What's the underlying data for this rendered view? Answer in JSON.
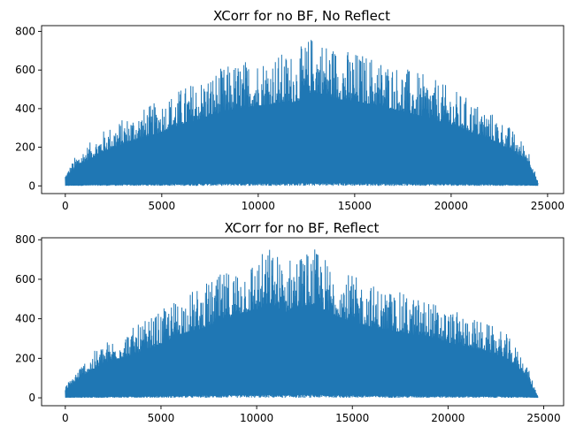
{
  "chart_data": [
    {
      "type": "line",
      "title": "XCorr for no BF, No Reflect",
      "xlabel": "",
      "ylabel": "",
      "xlim": [
        -1230,
        25830
      ],
      "ylim": [
        -40,
        830
      ],
      "xticks": [
        0,
        5000,
        10000,
        15000,
        20000,
        25000
      ],
      "xtick_labels": [
        "0",
        "5000",
        "10000",
        "15000",
        "20000",
        "25000"
      ],
      "yticks": [
        0,
        200,
        400,
        600,
        800
      ],
      "ytick_labels": [
        "0",
        "200",
        "400",
        "600",
        "800"
      ],
      "grid": false,
      "color": "#1f77b4",
      "series": [
        {
          "x": [
            0,
            500,
            1000,
            2000,
            3000,
            4000,
            5000,
            6000,
            7000,
            8000,
            9000,
            10000,
            11000,
            12000,
            12800,
            13500,
            14000,
            15000,
            16000,
            17000,
            18000,
            19000,
            20000,
            21000,
            22000,
            23000,
            24000,
            24500
          ],
          "upper_envelope": [
            60,
            150,
            200,
            290,
            350,
            400,
            450,
            510,
            560,
            610,
            650,
            670,
            690,
            700,
            790,
            760,
            730,
            700,
            680,
            640,
            600,
            560,
            510,
            450,
            390,
            310,
            200,
            20
          ],
          "lower_envelope": [
            0,
            0,
            0,
            0,
            0,
            0,
            0,
            0,
            0,
            0,
            0,
            0,
            0,
            0,
            0,
            0,
            0,
            0,
            0,
            0,
            0,
            0,
            0,
            0,
            0,
            0,
            0,
            0
          ]
        }
      ]
    },
    {
      "type": "line",
      "title": "XCorr for no BF, Reflect",
      "xlabel": "",
      "ylabel": "",
      "xlim": [
        -1240,
        26040
      ],
      "ylim": [
        -40,
        810
      ],
      "xticks": [
        0,
        5000,
        10000,
        15000,
        20000,
        25000
      ],
      "xtick_labels": [
        "0",
        "5000",
        "10000",
        "15000",
        "20000",
        "25000"
      ],
      "yticks": [
        0,
        200,
        400,
        600,
        800
      ],
      "ytick_labels": [
        "0",
        "200",
        "400",
        "600",
        "800"
      ],
      "grid": false,
      "color": "#1f77b4",
      "series": [
        {
          "x": [
            0,
            500,
            1000,
            2000,
            3000,
            4000,
            5000,
            6000,
            7000,
            8000,
            9000,
            10000,
            10700,
            11500,
            12000,
            13000,
            14000,
            15000,
            16000,
            17000,
            18000,
            19000,
            20000,
            21000,
            22000,
            23000,
            24000,
            24700
          ],
          "upper_envelope": [
            60,
            130,
            190,
            280,
            330,
            380,
            440,
            520,
            560,
            620,
            680,
            720,
            770,
            700,
            740,
            760,
            680,
            620,
            580,
            550,
            520,
            500,
            450,
            420,
            380,
            330,
            200,
            10
          ],
          "lower_envelope": [
            0,
            0,
            0,
            0,
            0,
            0,
            0,
            0,
            0,
            0,
            0,
            0,
            0,
            0,
            0,
            0,
            0,
            0,
            0,
            0,
            0,
            0,
            0,
            0,
            0,
            0,
            0,
            0
          ]
        }
      ]
    }
  ]
}
